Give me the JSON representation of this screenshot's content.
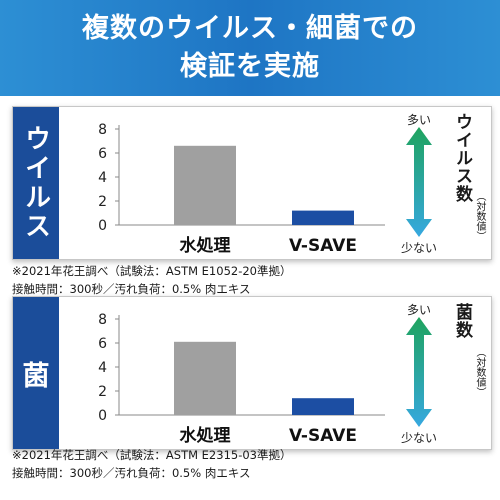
{
  "header": {
    "title_line1": "複数のウイルス・細菌での",
    "title_line2": "検証を実施"
  },
  "colors": {
    "header_blue": "#1e75c4",
    "side_blue": "#1b4d9a",
    "water_bar": "#a0a0a0",
    "vsave_bar": "#1c4ea3",
    "arrow_top": "#1fa35e",
    "arrow_bottom": "#36a8e0"
  },
  "arrow": {
    "top_label": "多い",
    "bottom_label": "少ない"
  },
  "chart_data": [
    {
      "type": "bar",
      "panel_label": "ウイルス",
      "categories": [
        "水処理",
        "V-SAVE"
      ],
      "values": [
        6.6,
        1.2
      ],
      "yticks": [
        "0",
        "2",
        "4",
        "6",
        "8"
      ],
      "ylim": [
        0,
        8
      ],
      "ylabel": "ウイルス数",
      "ylabel_sub": "（対数値）",
      "grid": false,
      "note_line1": "※2021年花王調べ（試験法：ASTM E1052-20準拠）",
      "note_line2": "接触時間：300秒／汚れ負荷：0.5% 肉エキス"
    },
    {
      "type": "bar",
      "panel_label": "菌",
      "categories": [
        "水処理",
        "V-SAVE"
      ],
      "values": [
        6.1,
        1.4
      ],
      "yticks": [
        "0",
        "2",
        "4",
        "6",
        "8"
      ],
      "ylim": [
        0,
        8
      ],
      "ylabel": "菌数",
      "ylabel_sub": "（対数値）",
      "grid": false,
      "note_line1": "※2021年花王調べ（試験法：ASTM E2315-03準拠）",
      "note_line2": "接触時間：300秒／汚れ負荷：0.5% 肉エキス"
    }
  ]
}
